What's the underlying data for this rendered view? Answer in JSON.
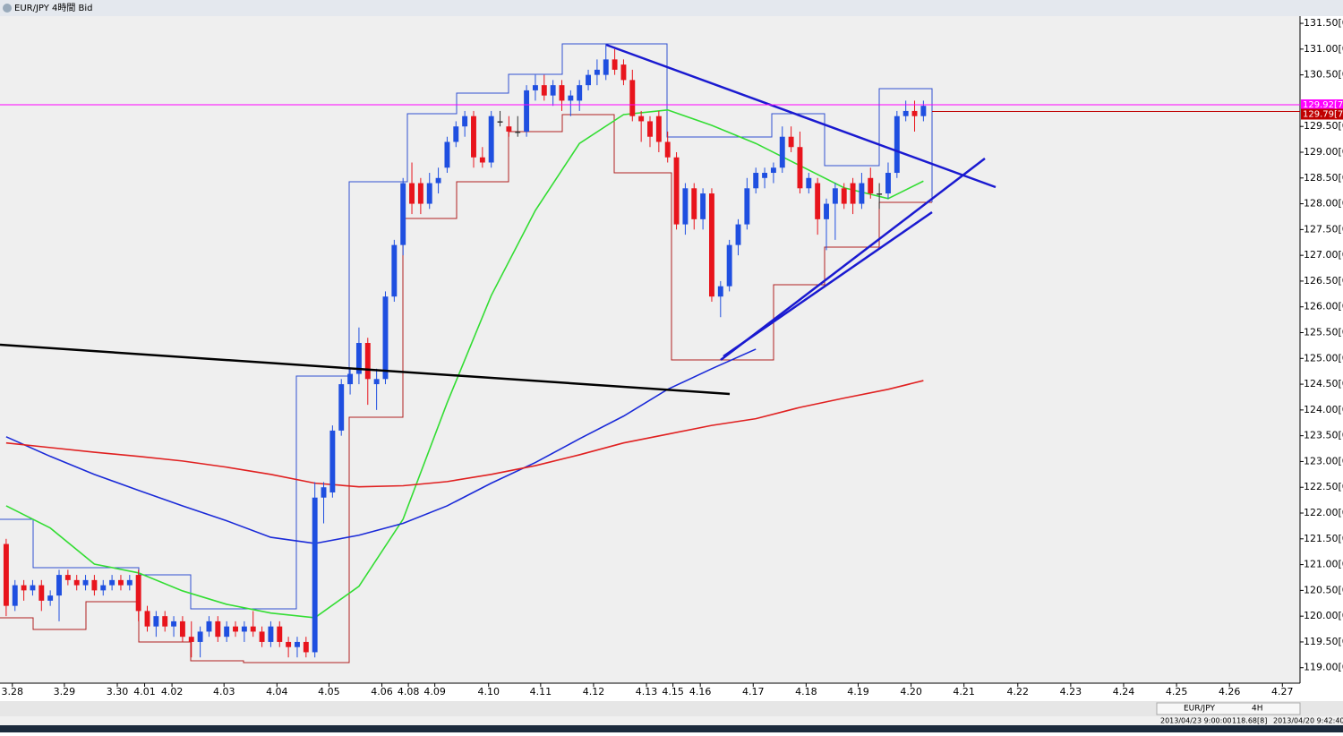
{
  "chart_data": {
    "type": "candlestick",
    "title": "EUR/JPY 4時間 Bid",
    "up_color": "#1f4fe0",
    "down_color": "#e8141c",
    "grid": false,
    "xlim": [
      -0.7,
      146.7
    ],
    "ylim": [
      118.7,
      131.64
    ],
    "xticks": [
      {
        "value": 0.7,
        "label": "3.28"
      },
      {
        "value": 6.6,
        "label": "3.29"
      },
      {
        "value": 12.6,
        "label": "3.30"
      },
      {
        "value": 15.7,
        "label": "4.01"
      },
      {
        "value": 18.8,
        "label": "4.02"
      },
      {
        "value": 24.7,
        "label": "4.03"
      },
      {
        "value": 30.7,
        "label": "4.04"
      },
      {
        "value": 36.6,
        "label": "4.05"
      },
      {
        "value": 42.6,
        "label": "4.06"
      },
      {
        "value": 45.6,
        "label": "4.08"
      },
      {
        "value": 48.6,
        "label": "4.09"
      },
      {
        "value": 54.7,
        "label": "4.10"
      },
      {
        "value": 60.6,
        "label": "4.11"
      },
      {
        "value": 66.6,
        "label": "4.12"
      },
      {
        "value": 72.6,
        "label": "4.13"
      },
      {
        "value": 75.6,
        "label": "4.15"
      },
      {
        "value": 78.7,
        "label": "4.16"
      },
      {
        "value": 84.7,
        "label": "4.17"
      },
      {
        "value": 90.7,
        "label": "4.18"
      },
      {
        "value": 96.6,
        "label": "4.19"
      },
      {
        "value": 102.6,
        "label": "4.20"
      },
      {
        "value": 108.6,
        "label": "4.21"
      },
      {
        "value": 114.7,
        "label": "4.22"
      },
      {
        "value": 120.7,
        "label": "4.23"
      },
      {
        "value": 126.7,
        "label": "4.24"
      },
      {
        "value": 132.7,
        "label": "4.25"
      },
      {
        "value": 138.7,
        "label": "4.26"
      },
      {
        "value": 144.7,
        "label": "4.27"
      }
    ],
    "yticks": [
      {
        "value": 131.5,
        "label": "131.50[0"
      },
      {
        "value": 131,
        "label": "131.00[0"
      },
      {
        "value": 130.5,
        "label": "130.50[0"
      },
      {
        "value": 129.5,
        "label": "129.50[0"
      },
      {
        "value": 129,
        "label": "129.00[0"
      },
      {
        "value": 128.5,
        "label": "128.50[0"
      },
      {
        "value": 128,
        "label": "128.00[0"
      },
      {
        "value": 127.5,
        "label": "127.50[0"
      },
      {
        "value": 127,
        "label": "127.00[0"
      },
      {
        "value": 126.5,
        "label": "126.50[0"
      },
      {
        "value": 126,
        "label": "126.00[0"
      },
      {
        "value": 125.5,
        "label": "125.50[0"
      },
      {
        "value": 125,
        "label": "125.00[0"
      },
      {
        "value": 124.5,
        "label": "124.50[0"
      },
      {
        "value": 124,
        "label": "124.00[0"
      },
      {
        "value": 123.5,
        "label": "123.50[0"
      },
      {
        "value": 123,
        "label": "123.00[0"
      },
      {
        "value": 122.5,
        "label": "122.50[0"
      },
      {
        "value": 122,
        "label": "122.00[0"
      },
      {
        "value": 121.5,
        "label": "121.50[0"
      },
      {
        "value": 121,
        "label": "121.00[0"
      },
      {
        "value": 120.5,
        "label": "120.50[0"
      },
      {
        "value": 120,
        "label": "120.00[0"
      },
      {
        "value": 119.5,
        "label": "119.50[0"
      },
      {
        "value": 119,
        "label": "119.00[0"
      }
    ],
    "ohlc": [
      [
        121.4,
        121.5,
        120.0,
        120.2
      ],
      [
        120.2,
        120.7,
        120.1,
        120.6
      ],
      [
        120.6,
        120.7,
        120.3,
        120.5
      ],
      [
        120.5,
        120.7,
        120.4,
        120.6
      ],
      [
        120.6,
        120.7,
        120.1,
        120.3
      ],
      [
        120.3,
        120.5,
        120.2,
        120.4
      ],
      [
        120.4,
        120.9,
        119.9,
        120.8
      ],
      [
        120.8,
        120.9,
        120.6,
        120.7
      ],
      [
        120.7,
        120.8,
        120.5,
        120.6
      ],
      [
        120.6,
        120.8,
        120.5,
        120.7
      ],
      [
        120.7,
        120.8,
        120.4,
        120.5
      ],
      [
        120.5,
        120.7,
        120.4,
        120.6
      ],
      [
        120.6,
        120.8,
        120.5,
        120.7
      ],
      [
        120.7,
        120.8,
        120.5,
        120.6
      ],
      [
        120.6,
        120.8,
        120.5,
        120.7
      ],
      [
        120.8,
        120.9,
        119.9,
        120.1
      ],
      [
        120.1,
        120.2,
        119.7,
        119.8
      ],
      [
        119.8,
        120.1,
        119.6,
        120.0
      ],
      [
        120.0,
        120.1,
        119.7,
        119.8
      ],
      [
        119.8,
        120.0,
        119.6,
        119.9
      ],
      [
        119.9,
        120.0,
        119.5,
        119.6
      ],
      [
        119.6,
        119.9,
        119.2,
        119.5
      ],
      [
        119.5,
        119.8,
        119.2,
        119.7
      ],
      [
        119.7,
        120.0,
        119.6,
        119.9
      ],
      [
        119.9,
        120.0,
        119.5,
        119.6
      ],
      [
        119.6,
        119.9,
        119.5,
        119.8
      ],
      [
        119.8,
        119.9,
        119.6,
        119.7
      ],
      [
        119.7,
        119.9,
        119.5,
        119.8
      ],
      [
        119.8,
        120.1,
        119.6,
        119.7
      ],
      [
        119.7,
        119.8,
        119.4,
        119.5
      ],
      [
        119.5,
        119.9,
        119.4,
        119.8
      ],
      [
        119.8,
        119.9,
        119.4,
        119.5
      ],
      [
        119.5,
        119.6,
        119.2,
        119.4
      ],
      [
        119.4,
        119.6,
        119.2,
        119.5
      ],
      [
        119.5,
        119.6,
        119.2,
        119.3
      ],
      [
        119.3,
        122.6,
        119.2,
        122.3
      ],
      [
        122.3,
        122.6,
        121.8,
        122.5
      ],
      [
        122.4,
        123.7,
        122.3,
        123.6
      ],
      [
        123.6,
        124.6,
        123.5,
        124.5
      ],
      [
        124.5,
        124.8,
        124.3,
        124.7
      ],
      [
        124.7,
        125.6,
        124.5,
        125.3
      ],
      [
        125.3,
        125.4,
        124.1,
        124.6
      ],
      [
        124.5,
        124.8,
        124.0,
        124.6
      ],
      [
        124.6,
        126.3,
        124.5,
        126.2
      ],
      [
        126.2,
        127.3,
        126.1,
        127.2
      ],
      [
        127.2,
        128.5,
        127.0,
        128.4
      ],
      [
        128.4,
        128.8,
        127.8,
        128.0
      ],
      [
        128.4,
        128.5,
        127.8,
        128.0
      ],
      [
        128.0,
        128.6,
        127.9,
        128.4
      ],
      [
        128.4,
        128.7,
        128.2,
        128.5
      ],
      [
        128.7,
        129.3,
        128.6,
        129.2
      ],
      [
        129.2,
        129.6,
        129.1,
        129.5
      ],
      [
        129.5,
        129.8,
        129.3,
        129.7
      ],
      [
        129.7,
        129.8,
        128.7,
        128.9
      ],
      [
        128.9,
        129.1,
        128.7,
        128.8
      ],
      [
        128.8,
        129.8,
        128.7,
        129.7
      ],
      [
        129.6,
        129.8,
        129.5,
        129.6
      ],
      [
        129.5,
        129.7,
        129.3,
        129.4
      ],
      [
        129.4,
        129.7,
        129.3,
        129.4
      ],
      [
        129.4,
        130.3,
        129.3,
        130.2
      ],
      [
        130.2,
        130.5,
        130.0,
        130.3
      ],
      [
        130.3,
        130.5,
        130.0,
        130.1
      ],
      [
        130.1,
        130.4,
        129.9,
        130.3
      ],
      [
        130.3,
        130.4,
        129.8,
        130.0
      ],
      [
        130.0,
        130.2,
        129.7,
        130.1
      ],
      [
        130.0,
        130.4,
        129.8,
        130.3
      ],
      [
        130.3,
        130.6,
        130.2,
        130.5
      ],
      [
        130.5,
        130.8,
        130.3,
        130.6
      ],
      [
        130.5,
        131.1,
        130.4,
        130.8
      ],
      [
        130.8,
        131.0,
        130.5,
        130.6
      ],
      [
        130.7,
        130.8,
        130.3,
        130.4
      ],
      [
        130.4,
        130.6,
        129.6,
        129.7
      ],
      [
        129.7,
        129.8,
        129.2,
        129.6
      ],
      [
        129.6,
        129.7,
        129.1,
        129.3
      ],
      [
        129.7,
        129.8,
        129.0,
        129.2
      ],
      [
        129.2,
        129.4,
        128.8,
        128.9
      ],
      [
        128.9,
        129.0,
        127.5,
        127.6
      ],
      [
        127.6,
        128.4,
        127.4,
        128.3
      ],
      [
        128.3,
        128.4,
        127.5,
        127.7
      ],
      [
        127.7,
        128.3,
        127.5,
        128.2
      ],
      [
        128.2,
        128.3,
        126.1,
        126.2
      ],
      [
        126.2,
        126.5,
        125.8,
        126.4
      ],
      [
        126.4,
        127.3,
        126.3,
        127.2
      ],
      [
        127.2,
        127.7,
        127.0,
        127.6
      ],
      [
        127.6,
        128.5,
        127.5,
        128.3
      ],
      [
        128.3,
        128.7,
        128.2,
        128.6
      ],
      [
        128.5,
        128.7,
        128.3,
        128.6
      ],
      [
        128.6,
        128.8,
        128.4,
        128.7
      ],
      [
        128.7,
        129.5,
        128.6,
        129.3
      ],
      [
        129.3,
        129.5,
        129.0,
        129.1
      ],
      [
        129.1,
        129.4,
        128.2,
        128.3
      ],
      [
        128.3,
        128.6,
        128.2,
        128.5
      ],
      [
        128.4,
        128.5,
        127.4,
        127.7
      ],
      [
        127.7,
        128.1,
        127.1,
        128.0
      ],
      [
        128.0,
        128.4,
        127.3,
        128.3
      ],
      [
        128.3,
        128.4,
        127.9,
        128.0
      ],
      [
        128.4,
        128.5,
        127.8,
        128.0
      ],
      [
        128.0,
        128.6,
        127.9,
        128.4
      ],
      [
        128.5,
        128.7,
        128.1,
        128.2
      ],
      [
        128.2,
        128.4,
        127.9,
        128.2
      ],
      [
        128.2,
        128.8,
        128.1,
        128.6
      ],
      [
        128.6,
        129.8,
        128.5,
        129.7
      ],
      [
        129.7,
        130.0,
        129.6,
        129.8
      ],
      [
        129.8,
        130.0,
        129.4,
        129.7
      ],
      [
        129.7,
        130.0,
        129.6,
        129.9
      ]
    ],
    "overlays": [
      {
        "color": "#33dd33",
        "x": [
          0,
          5,
          10,
          15,
          20,
          25,
          30,
          35,
          40,
          45,
          50,
          55,
          60,
          65,
          70,
          75,
          80,
          85,
          90,
          95,
          100,
          104
        ],
        "values": [
          122.14,
          121.71,
          121.01,
          120.84,
          120.49,
          120.23,
          120.06,
          119.97,
          120.58,
          121.88,
          124.14,
          126.22,
          127.87,
          129.17,
          129.73,
          129.82,
          129.52,
          129.17,
          128.74,
          128.31,
          128.1,
          128.44
        ]
      },
      {
        "color": "#1a2ad8",
        "x": [
          0,
          5,
          10,
          15,
          20,
          25,
          30,
          35,
          40,
          45,
          50,
          55,
          60,
          65,
          70,
          75,
          80,
          85
        ],
        "values": [
          123.48,
          123.1,
          122.75,
          122.44,
          122.14,
          121.85,
          121.53,
          121.41,
          121.57,
          121.8,
          122.14,
          122.58,
          122.98,
          123.44,
          123.88,
          124.4,
          124.8,
          125.18
        ]
      },
      {
        "color": "#e02020",
        "x": [
          0,
          5,
          10,
          15,
          20,
          25,
          30,
          35,
          40,
          45,
          50,
          55,
          60,
          65,
          70,
          75,
          80,
          85,
          90,
          95,
          100,
          104
        ],
        "values": [
          123.36,
          123.27,
          123.18,
          123.1,
          123.01,
          122.89,
          122.75,
          122.58,
          122.51,
          122.53,
          122.61,
          122.75,
          122.92,
          123.13,
          123.36,
          123.53,
          123.7,
          123.83,
          124.05,
          124.23,
          124.4,
          124.57
        ]
      }
    ],
    "price_labels": [
      {
        "value": 129.92,
        "label": "129.92[7",
        "color": "#ff00ff"
      },
      {
        "value": 129.79,
        "label": "129.79[7",
        "color": "#c00000"
      }
    ]
  },
  "status_bar": {
    "symbol": "EUR/JPY",
    "period": "4H",
    "cursor_time": "2013/04/23 9:00:00",
    "cursor_price": "118.68[8]",
    "server_time": "2013/04/20 9:42:40"
  }
}
